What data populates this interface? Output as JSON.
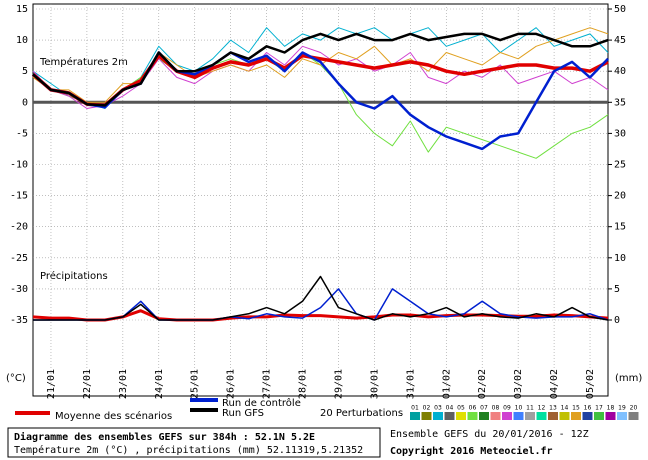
{
  "chart_data": {
    "type": "line",
    "annotations": [
      "Températures 2m",
      "Précipitations"
    ],
    "y_unit_label": "(°C)",
    "y2_unit_label": "(mm)",
    "categories": [
      null,
      "21/01",
      null,
      "22/01",
      null,
      "23/01",
      null,
      "24/01",
      null,
      "25/01",
      null,
      "26/01",
      null,
      "27/01",
      null,
      "28/01",
      null,
      "29/01",
      null,
      "30/01",
      null,
      "31/01",
      null,
      "01/02",
      null,
      "02/02",
      null,
      "03/02",
      null,
      "04/02",
      null,
      "05/02",
      null
    ],
    "ylim": [
      -35,
      15
    ],
    "yticks": [
      -35,
      -30,
      -25,
      -20,
      -15,
      -10,
      -5,
      0,
      5,
      10,
      15
    ],
    "y2lim": [
      0,
      50
    ],
    "y2ticks": [
      0,
      5,
      10,
      15,
      20,
      25,
      30,
      35,
      40,
      45,
      50
    ],
    "grid": true,
    "zero_line": true,
    "series": [
      {
        "name": "Moyenne des scénarios",
        "color": "#e00000",
        "width": 3.5,
        "values": [
          4.5,
          2,
          1.5,
          -0.3,
          -0.5,
          2,
          3.5,
          7.5,
          5,
          4,
          5.5,
          6.5,
          6,
          7,
          5.5,
          7.5,
          7,
          6.5,
          6,
          5.5,
          6,
          6.5,
          6,
          5,
          4.5,
          5,
          5.5,
          6,
          6,
          5.5,
          5.5,
          5,
          6.5
        ]
      },
      {
        "name": "Run de contrôle",
        "color": "#0020d0",
        "width": 2.5,
        "values": [
          4.5,
          2,
          1.5,
          -0.3,
          -0.8,
          2,
          3,
          8,
          5,
          4.5,
          6,
          8,
          6.5,
          7.5,
          5,
          8,
          6.5,
          3,
          0,
          -1,
          1,
          -2,
          -4,
          -5.5,
          -6.5,
          -7.5,
          -5.5,
          -5,
          0,
          5,
          6.5,
          4,
          7
        ]
      },
      {
        "name": "Run GFS",
        "color": "#000000",
        "width": 2.5,
        "values": [
          4.5,
          2,
          1.5,
          -0.3,
          -0.5,
          2,
          3,
          8,
          5,
          5,
          6,
          8,
          7,
          9,
          8,
          10,
          11,
          10,
          11,
          10,
          10,
          11,
          10,
          10.5,
          11,
          11,
          10,
          11,
          11,
          10,
          9,
          9,
          10
        ]
      },
      {
        "axis": "y2",
        "color": "#e00000",
        "width": 3,
        "values": [
          0.5,
          0.3,
          0.3,
          0,
          0,
          0.5,
          1.5,
          0.2,
          0,
          0,
          0,
          0.3,
          0.5,
          0.5,
          0.8,
          0.7,
          0.7,
          0.5,
          0.3,
          0.5,
          0.8,
          0.8,
          0.5,
          0.7,
          0.8,
          0.8,
          0.7,
          0.6,
          0.6,
          0.8,
          0.7,
          0.5,
          0.3
        ]
      },
      {
        "axis": "y2",
        "color": "#0020d0",
        "width": 1.5,
        "values": [
          0,
          0,
          0,
          0,
          0,
          0.5,
          3,
          0,
          0,
          0,
          0,
          0.5,
          0.2,
          1,
          0.5,
          0.3,
          2,
          5,
          1,
          0,
          5,
          3,
          1,
          0.5,
          1,
          3,
          1,
          0.5,
          0.3,
          0.5,
          0.5,
          1,
          0
        ]
      },
      {
        "axis": "y2",
        "color": "#000000",
        "width": 1.5,
        "values": [
          0,
          0,
          0,
          0,
          0,
          0.5,
          2.5,
          0,
          0,
          0,
          0,
          0.5,
          1,
          2,
          1,
          3,
          7,
          2,
          1,
          0,
          1,
          0.5,
          1,
          2,
          0.5,
          1,
          0.5,
          0.3,
          1,
          0.5,
          2,
          0.5,
          0
        ]
      }
    ],
    "perturbations": [
      {
        "name": "03",
        "color": "#00b0d0",
        "values": [
          5,
          3,
          1,
          0,
          -1,
          2,
          4,
          9,
          6,
          5,
          7,
          10,
          8,
          12,
          9,
          11,
          10,
          12,
          11,
          12,
          10,
          11,
          12,
          9,
          10,
          11,
          8,
          10,
          12,
          9,
          10,
          11,
          8
        ]
      },
      {
        "name": "06",
        "color": "#70e040",
        "values": [
          4,
          2,
          1,
          0,
          -0.5,
          2,
          4,
          7,
          5,
          4,
          6,
          7,
          6,
          7,
          5,
          8,
          6,
          3,
          -2,
          -5,
          -7,
          -3,
          -8,
          -4,
          -5,
          -6,
          -7,
          -8,
          -9,
          -7,
          -5,
          -4,
          -2
        ]
      },
      {
        "name": "09",
        "color": "#d040d0",
        "values": [
          5,
          2,
          1,
          -1,
          -0.5,
          1,
          3,
          7,
          4,
          3,
          5,
          6,
          5,
          8,
          6,
          9,
          8,
          6,
          7,
          5,
          6,
          8,
          4,
          3,
          5,
          4,
          6,
          3,
          4,
          5,
          3,
          4,
          2
        ]
      },
      {
        "name": "15",
        "color": "#e0a020",
        "values": [
          4,
          2,
          2,
          0,
          0,
          3,
          3,
          8,
          6,
          4,
          5,
          6,
          5,
          6,
          4,
          7,
          6,
          8,
          7,
          9,
          6,
          7,
          5,
          8,
          7,
          6,
          8,
          7,
          9,
          10,
          11,
          12,
          11
        ]
      }
    ],
    "perturbation_legend": {
      "title": "20 Perturbations",
      "items": [
        {
          "name": "01",
          "color": "#00a0a0"
        },
        {
          "name": "02",
          "color": "#808000"
        },
        {
          "name": "03",
          "color": "#00b0d0"
        },
        {
          "name": "04",
          "color": "#606060"
        },
        {
          "name": "05",
          "color": "#e0e000"
        },
        {
          "name": "06",
          "color": "#70e040"
        },
        {
          "name": "07",
          "color": "#208020"
        },
        {
          "name": "08",
          "color": "#f08080"
        },
        {
          "name": "09",
          "color": "#d040d0"
        },
        {
          "name": "10",
          "color": "#4080ff"
        },
        {
          "name": "11",
          "color": "#a0a0a0"
        },
        {
          "name": "12",
          "color": "#00e0a0"
        },
        {
          "name": "13",
          "color": "#a06030"
        },
        {
          "name": "14",
          "color": "#c0c000"
        },
        {
          "name": "15",
          "color": "#e0a020"
        },
        {
          "name": "16",
          "color": "#2040a0"
        },
        {
          "name": "17",
          "color": "#40c040"
        },
        {
          "name": "18",
          "color": "#a000a0"
        },
        {
          "name": "19",
          "color": "#80c0ff"
        },
        {
          "name": "20",
          "color": "#808080"
        }
      ]
    }
  },
  "footer": {
    "title": "Diagramme des ensembles GEFS sur 384h : 52.1N 5.2E",
    "subtitle": "Température 2m (°C) , précipitations (mm) 52.11319,5.21352",
    "run": "Ensemble GEFS du 20/01/2016 - 12Z",
    "copyright": "Copyright 2016 Meteociel.fr"
  }
}
